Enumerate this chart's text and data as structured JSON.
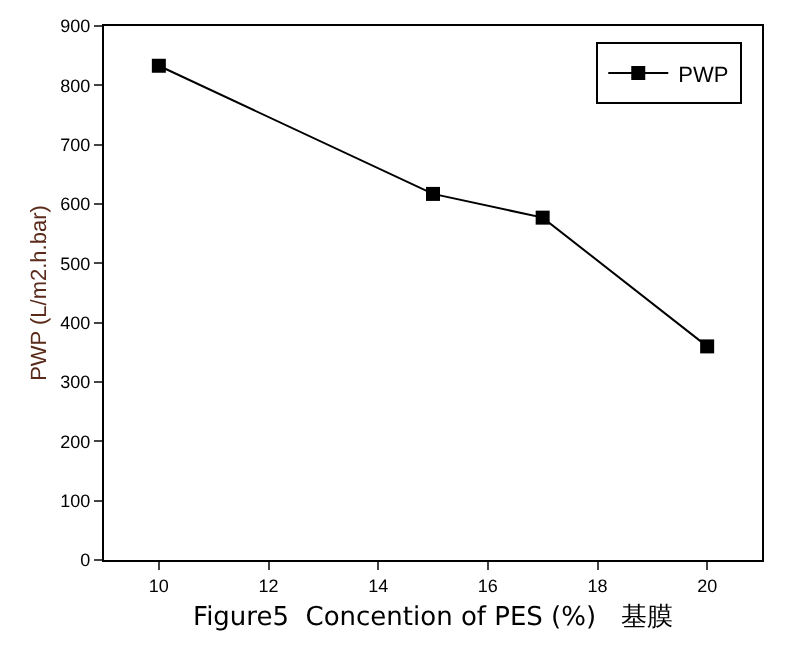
{
  "chart_data": {
    "type": "line",
    "xlabel": "Figure5  Concention of PES (%)   基膜",
    "ylabel": "PWP (L/m2.h.bar)",
    "x": [
      10,
      15,
      17,
      20
    ],
    "series": [
      {
        "name": "PWP",
        "color": "#000000",
        "values": [
          833,
          617,
          577,
          360
        ]
      }
    ],
    "xlim": [
      9,
      21
    ],
    "xticks": [
      10,
      12,
      14,
      16,
      18,
      20
    ],
    "ylim": [
      0,
      900
    ],
    "yticks": [
      0,
      100,
      200,
      300,
      400,
      500,
      600,
      700,
      800,
      900
    ],
    "legend": "top right",
    "marker": "square",
    "line_style": "solid"
  }
}
